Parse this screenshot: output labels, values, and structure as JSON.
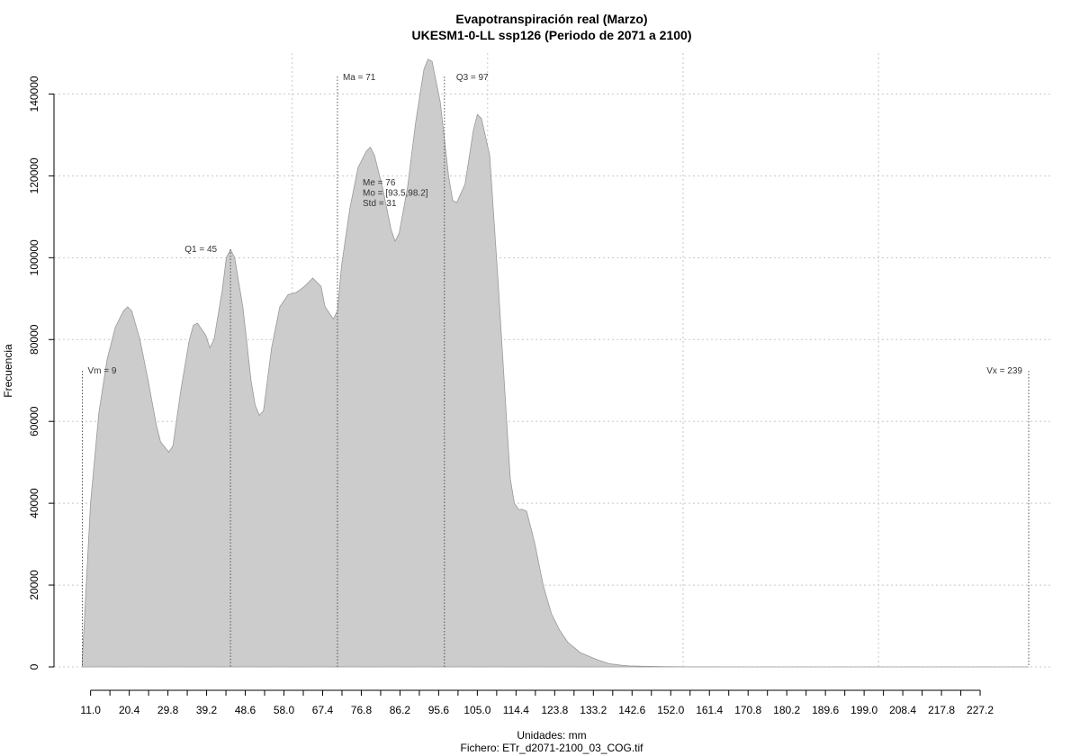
{
  "chart_data": {
    "type": "area",
    "title": "Evapotranspiración real (Marzo)",
    "subtitle": "UKESM1-0-LL ssp126 (Periodo de 2071 a 2100)",
    "xlabel": "Unidades: mm",
    "ylabel": "Frecuencia",
    "footer": "Fichero: ETr_d2071-2100_03_COG.tif",
    "xlim": [
      9,
      239
    ],
    "ylim": [
      0,
      150000
    ],
    "grid": true,
    "fill_color": "#cccccc",
    "line_color": "#999999",
    "x_tick_labels": [
      "11.0",
      "20.4",
      "29.8",
      "39.2",
      "48.6",
      "58.0",
      "67.4",
      "76.8",
      "86.2",
      "95.6",
      "105.0",
      "114.4",
      "123.8",
      "133.2",
      "142.6",
      "152.0",
      "161.4",
      "170.8",
      "180.2",
      "189.6",
      "199.0",
      "208.4",
      "217.8",
      "227.2"
    ],
    "x_ticks": [
      11.0,
      20.4,
      29.8,
      39.2,
      48.6,
      58.0,
      67.4,
      76.8,
      86.2,
      95.6,
      105.0,
      114.4,
      123.8,
      133.2,
      142.6,
      152.0,
      161.4,
      170.8,
      180.2,
      189.6,
      199.0,
      208.4,
      217.8,
      227.2
    ],
    "y_ticks": [
      0,
      20000,
      40000,
      60000,
      80000,
      100000,
      120000,
      140000
    ],
    "y_tick_labels": [
      "0",
      "20000",
      "40000",
      "60000",
      "80000",
      "100000",
      "120000",
      "140000"
    ],
    "x": [
      9,
      11,
      13,
      15,
      17,
      19,
      20,
      21,
      23,
      25,
      27,
      28,
      30,
      31,
      33,
      35,
      36,
      37,
      39,
      40,
      41,
      43,
      44,
      45,
      46,
      48,
      49,
      50,
      51,
      52,
      53,
      55,
      57,
      59,
      61,
      63,
      65,
      67,
      68,
      70,
      71,
      72,
      74,
      76,
      78,
      79,
      80,
      82,
      84,
      85,
      86,
      88,
      90,
      92,
      93,
      94,
      96,
      98,
      99,
      100,
      102,
      104,
      105,
      106,
      108,
      110,
      112,
      113,
      114,
      115,
      116,
      117,
      118,
      119,
      121,
      123,
      125,
      127,
      130,
      134,
      137,
      140,
      142,
      145,
      150,
      155,
      160,
      170,
      190,
      210,
      230,
      239
    ],
    "y": [
      2000,
      40000,
      62000,
      75000,
      83000,
      87000,
      88000,
      87000,
      80000,
      70000,
      59000,
      55000,
      52500,
      54000,
      68000,
      80000,
      83500,
      84000,
      81000,
      78000,
      80000,
      92000,
      100000,
      102000,
      100000,
      88000,
      79000,
      70000,
      64000,
      61500,
      62500,
      78000,
      88000,
      91000,
      91500,
      93000,
      95000,
      93000,
      88000,
      85000,
      87000,
      98000,
      112000,
      122000,
      126000,
      127000,
      125000,
      117000,
      107000,
      104000,
      106000,
      117000,
      133000,
      146000,
      148500,
      148000,
      138000,
      120000,
      114000,
      113500,
      118000,
      131000,
      135000,
      134000,
      125000,
      95000,
      62000,
      46000,
      40000,
      38500,
      38500,
      38000,
      34000,
      30000,
      20000,
      13000,
      9000,
      6000,
      3500,
      1800,
      800,
      400,
      250,
      150,
      60,
      30,
      15,
      5,
      2,
      1,
      0,
      0
    ],
    "annotations": {
      "vm": {
        "label": "Vm = 9",
        "x": 9
      },
      "q1": {
        "label": "Q1 = 45",
        "x": 45
      },
      "ma": {
        "label": "Ma = 71",
        "x": 71
      },
      "q3": {
        "label": "Q3 = 97",
        "x": 97
      },
      "vx": {
        "label": "Vx = 239",
        "x": 239
      },
      "stats": [
        "Me = 76",
        "Mo = [93.5,98.2]",
        "Std = 31"
      ]
    }
  }
}
